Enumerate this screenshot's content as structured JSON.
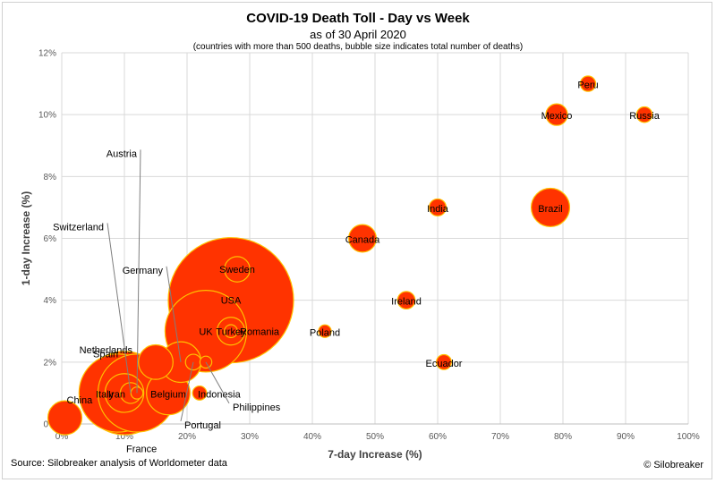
{
  "header": {
    "title": "COVID-19 Death Toll - Day vs Week",
    "subtitle": "as of 30 April 2020",
    "note": "(countries with more than 500 deaths, bubble size indicates total number of deaths)"
  },
  "footer": {
    "source": "Source: Silobreaker analysis of Worldometer data",
    "credit": "© Silobreaker"
  },
  "chart_data": {
    "type": "scatter",
    "title": "COVID-19 Death Toll - Day vs Week",
    "subtitle": "as of 30 April 2020",
    "xlabel": "7-day Increase (%)",
    "ylabel": "1-day Increase (%)",
    "xlim": [
      0,
      100
    ],
    "ylim": [
      0,
      12
    ],
    "x_ticks": [
      "0%",
      "10%",
      "20%",
      "30%",
      "40%",
      "50%",
      "60%",
      "70%",
      "80%",
      "90%",
      "100%"
    ],
    "y_ticks": [
      "0%",
      "2%",
      "4%",
      "6%",
      "8%",
      "10%",
      "12%"
    ],
    "grid": true,
    "bubble_fill": "#ff3300",
    "bubble_outline": "#ffc000",
    "points": [
      {
        "label": "USA",
        "x": 27,
        "y": 4,
        "deaths": 63000
      },
      {
        "label": "Italy",
        "x": 10,
        "y": 1,
        "deaths": 27967
      },
      {
        "label": "UK",
        "x": 23,
        "y": 3,
        "deaths": 26771
      },
      {
        "label": "Spain",
        "x": 9,
        "y": 1,
        "deaths": 24543
      },
      {
        "label": "France",
        "x": 12,
        "y": 1,
        "deaths": 24376
      },
      {
        "label": "Belgium",
        "x": 17,
        "y": 1,
        "deaths": 7594
      },
      {
        "label": "Germany",
        "x": 19,
        "y": 2,
        "deaths": 6623
      },
      {
        "label": "Iran",
        "x": 10,
        "y": 1,
        "deaths": 6028
      },
      {
        "label": "Brazil",
        "x": 78,
        "y": 7,
        "deaths": 5901
      },
      {
        "label": "Netherlands",
        "x": 15,
        "y": 2,
        "deaths": 4795
      },
      {
        "label": "China",
        "x": 0.5,
        "y": 0.2,
        "deaths": 4633
      },
      {
        "label": "Canada",
        "x": 48,
        "y": 6,
        "deaths": 3046
      },
      {
        "label": "Turkey",
        "x": 27,
        "y": 3,
        "deaths": 3081
      },
      {
        "label": "Sweden",
        "x": 28,
        "y": 5,
        "deaths": 2586
      },
      {
        "label": "Mexico",
        "x": 79,
        "y": 10,
        "deaths": 1859
      },
      {
        "label": "Switzerland",
        "x": 11,
        "y": 1,
        "deaths": 1737
      },
      {
        "label": "Ireland",
        "x": 55,
        "y": 4,
        "deaths": 1232
      },
      {
        "label": "India",
        "x": 60,
        "y": 7,
        "deaths": 1154
      },
      {
        "label": "Portugal",
        "x": 21,
        "y": 2,
        "deaths": 989
      },
      {
        "label": "Peru",
        "x": 84,
        "y": 11,
        "deaths": 943
      },
      {
        "label": "Ecuador",
        "x": 61,
        "y": 2,
        "deaths": 900
      },
      {
        "label": "Russia",
        "x": 93,
        "y": 10,
        "deaths": 972
      },
      {
        "label": "Indonesia",
        "x": 22,
        "y": 1,
        "deaths": 792
      },
      {
        "label": "Romania",
        "x": 27,
        "y": 3,
        "deaths": 675
      },
      {
        "label": "Poland",
        "x": 42,
        "y": 3,
        "deaths": 644
      },
      {
        "label": "Austria",
        "x": 12,
        "y": 1,
        "deaths": 580
      },
      {
        "label": "Philippines",
        "x": 23,
        "y": 2,
        "deaths": 568
      }
    ]
  }
}
